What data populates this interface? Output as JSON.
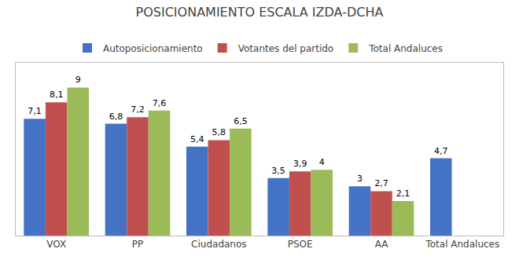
{
  "chart_data": {
    "type": "bar",
    "title": "POSICIONAMIENTO ESCALA IZDA-DCHA",
    "categories": [
      "VOX",
      "PP",
      "Ciudadanos",
      "PSOE",
      "AA",
      "Total Andaluces"
    ],
    "series": [
      {
        "name": "Autoposicionamiento",
        "color": "#4472C4",
        "values": [
          7.1,
          6.8,
          5.4,
          3.5,
          3.0,
          4.7
        ],
        "value_labels": [
          "7,1",
          "6,8",
          "5,4",
          "3,5",
          "3",
          "4,7"
        ]
      },
      {
        "name": "Votantes del partido",
        "color": "#C0504D",
        "values": [
          8.1,
          7.2,
          5.8,
          3.9,
          2.7,
          null
        ],
        "value_labels": [
          "8,1",
          "7,2",
          "5,8",
          "3,9",
          "2,7",
          null
        ]
      },
      {
        "name": "Total Andaluces",
        "color": "#9BBB59",
        "values": [
          9.0,
          7.6,
          6.5,
          4.0,
          2.1,
          null
        ],
        "value_labels": [
          "9",
          "7,6",
          "6,5",
          "4",
          "2,1",
          null
        ]
      }
    ],
    "ylim": [
      0,
      10.5
    ],
    "data_labels": true,
    "tick_labels": "x",
    "grid": false,
    "legend": "top"
  }
}
